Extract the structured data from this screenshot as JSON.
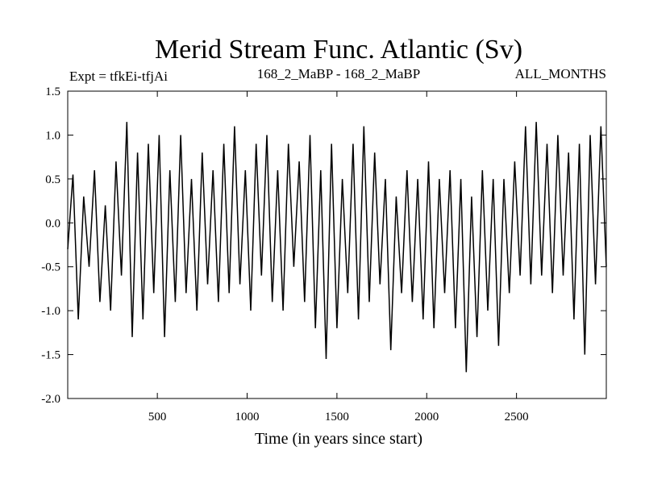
{
  "chart_data": {
    "type": "line",
    "title": "Merid Stream Func. Atlantic (Sv)",
    "subtitle_left": "Expt = tfkEi-tfjAi",
    "subtitle_center": "168_2_MaBP - 168_2_MaBP",
    "subtitle_right": "ALL_MONTHS",
    "xlabel": "Time (in years since start)",
    "ylabel": "",
    "xlim": [
      1,
      3000
    ],
    "ylim": [
      -2.0,
      1.5
    ],
    "xticks": [
      500,
      1000,
      1500,
      2000,
      2500
    ],
    "xtick_labels": [
      "500",
      "1000",
      "1500",
      "2000",
      "2500"
    ],
    "yticks": [
      -2.0,
      -1.5,
      -1.0,
      -0.5,
      0.0,
      0.5,
      1.0,
      1.5
    ],
    "ytick_labels": [
      "-2.0",
      "-1.5",
      "-1.0",
      "-0.5",
      "0.0",
      "0.5",
      "1.0",
      "1.5"
    ],
    "grid": false,
    "line_color": "#000000",
    "series": [
      {
        "x": [
          1,
          30,
          60,
          90,
          120,
          150,
          180,
          210,
          240,
          270,
          300,
          330,
          360,
          390,
          420,
          450,
          480,
          510,
          540,
          570,
          600,
          630,
          660,
          690,
          720,
          750,
          780,
          810,
          840,
          870,
          900,
          930,
          960,
          990,
          1020,
          1050,
          1080,
          1110,
          1140,
          1170,
          1200,
          1230,
          1260,
          1290,
          1320,
          1350,
          1380,
          1410,
          1440,
          1470,
          1500,
          1530,
          1560,
          1590,
          1620,
          1650,
          1680,
          1710,
          1740,
          1770,
          1800,
          1830,
          1860,
          1890,
          1920,
          1950,
          1980,
          2010,
          2040,
          2070,
          2100,
          2130,
          2160,
          2190,
          2220,
          2250,
          2280,
          2310,
          2340,
          2370,
          2400,
          2430,
          2460,
          2490,
          2520,
          2550,
          2580,
          2610,
          2640,
          2670,
          2700,
          2730,
          2760,
          2790,
          2820,
          2850,
          2880,
          2910,
          2940,
          2970,
          3000
        ],
        "values": [
          -0.3,
          0.55,
          -1.1,
          0.3,
          -0.5,
          0.6,
          -0.9,
          0.2,
          -1.0,
          0.7,
          -0.6,
          1.15,
          -1.3,
          0.8,
          -1.1,
          0.9,
          -0.8,
          1.0,
          -1.3,
          0.6,
          -0.9,
          1.0,
          -0.8,
          0.5,
          -1.0,
          0.8,
          -0.7,
          0.6,
          -0.9,
          0.9,
          -0.8,
          1.1,
          -0.7,
          0.6,
          -1.0,
          0.9,
          -0.6,
          1.0,
          -0.9,
          0.6,
          -1.0,
          0.9,
          -0.5,
          0.7,
          -0.9,
          1.0,
          -1.2,
          0.6,
          -1.55,
          0.9,
          -1.2,
          0.5,
          -0.8,
          0.9,
          -1.1,
          1.1,
          -0.9,
          0.8,
          -0.7,
          0.5,
          -1.45,
          0.3,
          -0.8,
          0.6,
          -0.9,
          0.5,
          -1.1,
          0.7,
          -1.2,
          0.5,
          -0.8,
          0.6,
          -1.2,
          0.5,
          -1.7,
          0.3,
          -1.3,
          0.6,
          -1.0,
          0.5,
          -1.4,
          0.5,
          -0.8,
          0.7,
          -0.6,
          1.1,
          -0.7,
          1.15,
          -0.6,
          0.9,
          -0.8,
          1.0,
          -0.6,
          0.8,
          -1.1,
          0.9,
          -1.5,
          1.0,
          -0.7,
          1.1,
          -0.5
        ]
      }
    ]
  }
}
